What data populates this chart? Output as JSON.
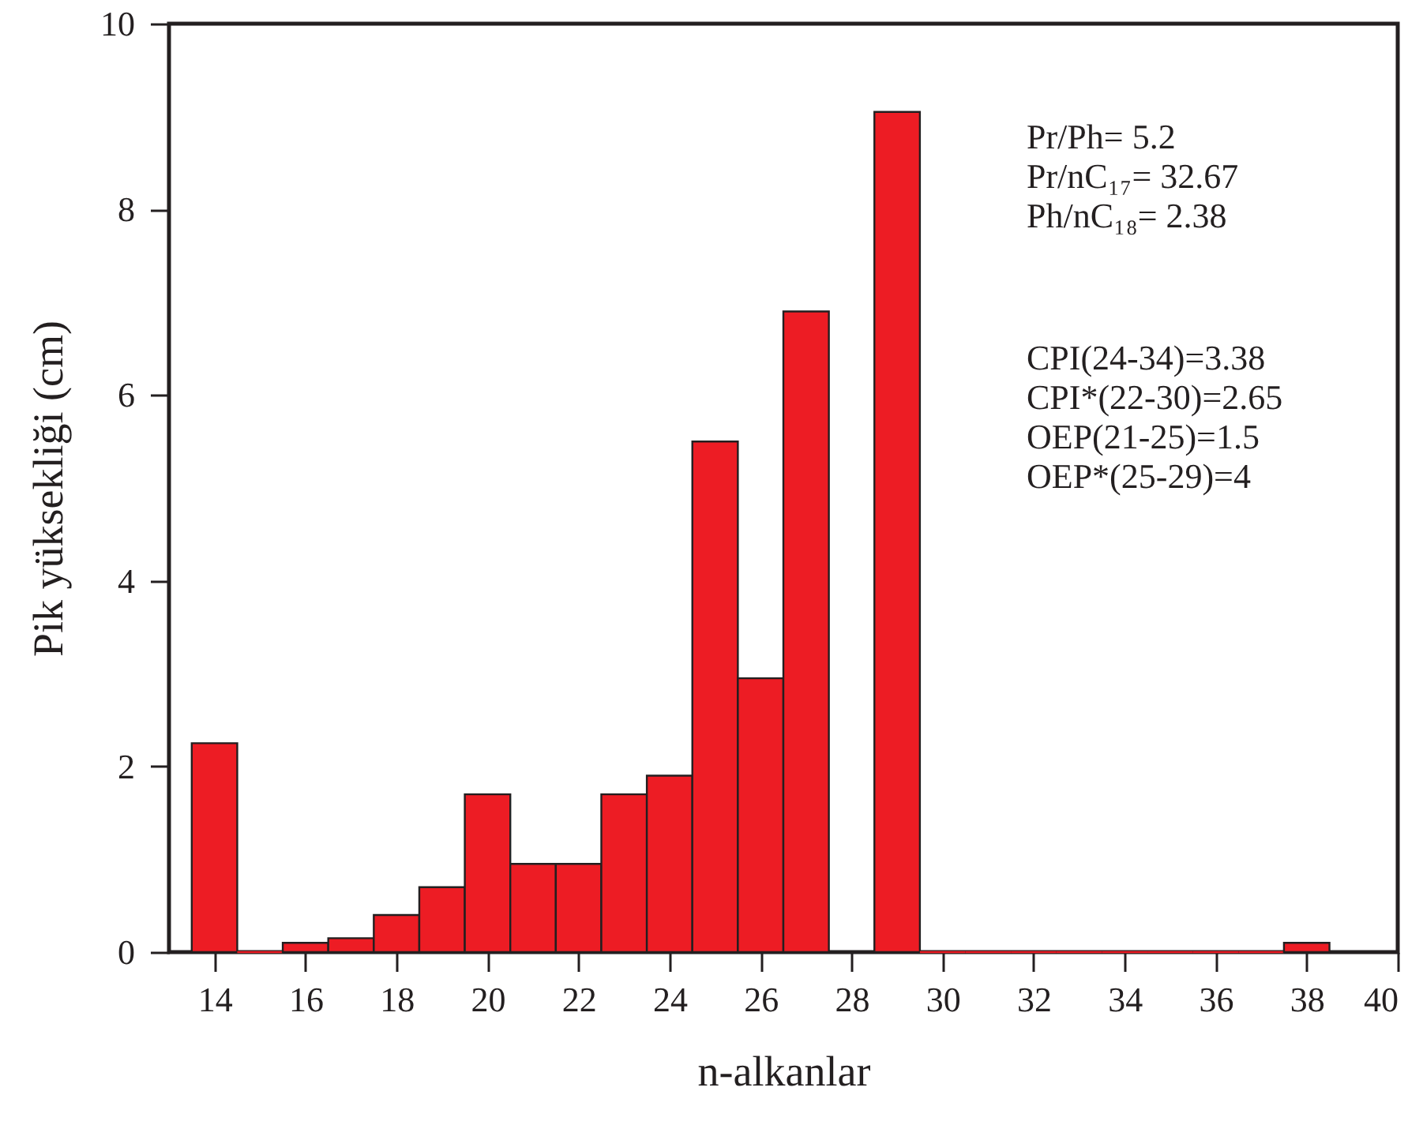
{
  "chart_data": {
    "type": "bar",
    "xlabel": "n-alkanlar",
    "ylabel": "Pik yüksekliği (cm)",
    "x": [
      14,
      15,
      16,
      17,
      18,
      19,
      20,
      21,
      22,
      23,
      24,
      25,
      26,
      27,
      29,
      30,
      31,
      32,
      33,
      34,
      35,
      36,
      37,
      38
    ],
    "series": [
      {
        "color": "#ed1c24",
        "values": [
          2.25,
          0,
          0.1,
          0.15,
          0.4,
          0.7,
          1.7,
          0.95,
          0.95,
          1.7,
          1.9,
          5.5,
          2.95,
          6.9,
          9.05,
          0,
          0,
          0,
          0,
          0,
          0,
          0,
          0,
          0.1
        ]
      }
    ],
    "xlim": [
      13,
      40
    ],
    "xticks": [
      14,
      16,
      18,
      20,
      22,
      24,
      26,
      28,
      30,
      32,
      34,
      36,
      38,
      40
    ],
    "ylim": [
      0,
      10
    ],
    "yticks": [
      0,
      2,
      4,
      6,
      8,
      10
    ],
    "grid": false,
    "annotations": [
      "Pr/Ph= 5.2",
      "Pr/nC₁₇= 32.67",
      "Ph/nC₁₈= 2.38",
      "CPI(24-34)=3.38",
      "CPI*(22-30)=2.65",
      "OEP(21-25)=1.5",
      "OEP*(25-29)=4"
    ]
  }
}
